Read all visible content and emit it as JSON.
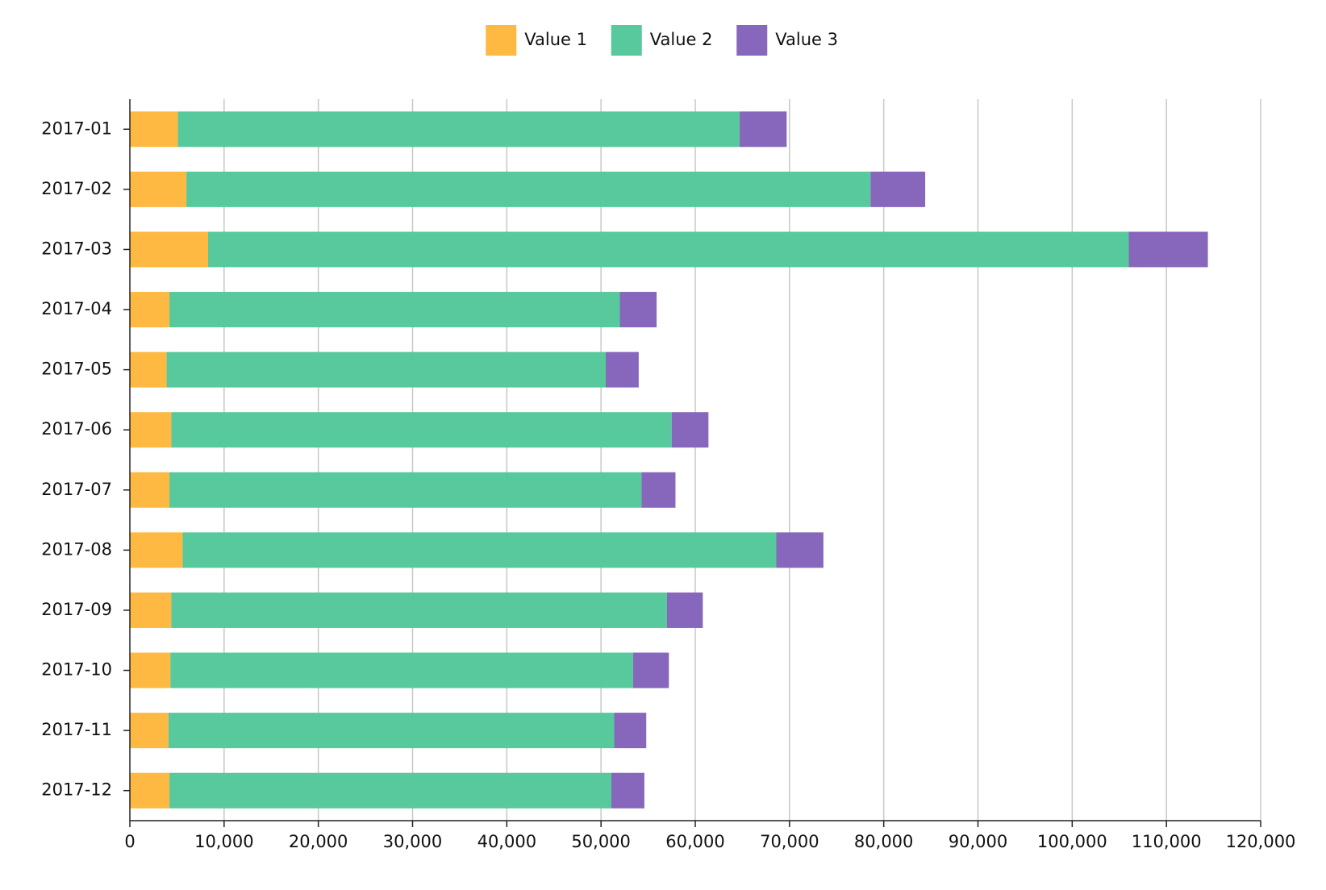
{
  "chart_data": {
    "type": "bar",
    "orientation": "horizontal",
    "stacked": true,
    "categories": [
      "2017-01",
      "2017-02",
      "2017-03",
      "2017-04",
      "2017-05",
      "2017-06",
      "2017-07",
      "2017-08",
      "2017-09",
      "2017-10",
      "2017-11",
      "2017-12"
    ],
    "series": [
      {
        "name": "Value 1",
        "color": "#fdb942",
        "values": [
          5100,
          6000,
          8300,
          4200,
          3900,
          4400,
          4200,
          5600,
          4400,
          4300,
          4100,
          4200
        ]
      },
      {
        "name": "Value 2",
        "color": "#57c99c",
        "values": [
          59600,
          72600,
          97700,
          47800,
          46600,
          53100,
          50100,
          63000,
          52600,
          49100,
          47300,
          46900
        ]
      },
      {
        "name": "Value 3",
        "color": "#8767bb",
        "values": [
          5000,
          5800,
          8400,
          3900,
          3500,
          3900,
          3600,
          5000,
          3800,
          3800,
          3400,
          3500
        ]
      }
    ],
    "x_ticks": [
      "0",
      "10,000",
      "20,000",
      "30,000",
      "40,000",
      "50,000",
      "60,000",
      "70,000",
      "80,000",
      "90,000",
      "100,000",
      "110,000",
      "120,000"
    ],
    "xlim": [
      0,
      120000
    ],
    "grid": true,
    "legend_position": "top"
  }
}
